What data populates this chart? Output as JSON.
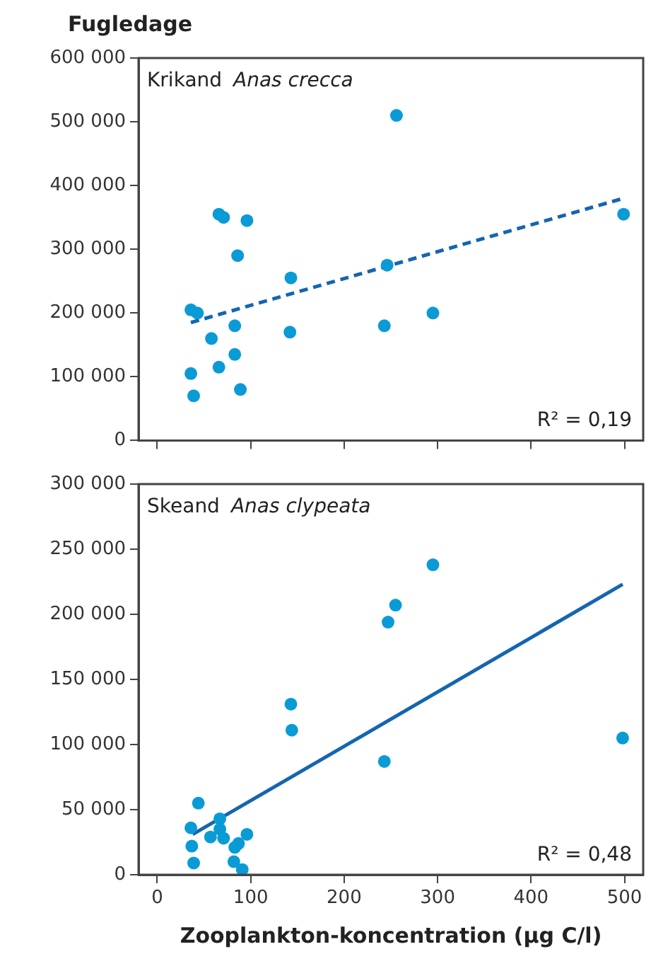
{
  "chart_data": [
    {
      "type": "scatter",
      "ylabel": "Fugledage",
      "title": "Krikand",
      "subtitle": "Anas crecca",
      "annotations": [
        "R² = 0,19"
      ],
      "xlim": [
        -20,
        520
      ],
      "xticks": [
        0,
        100,
        200,
        300,
        400,
        500
      ],
      "ylim": [
        0,
        600000
      ],
      "yticks": [
        {
          "value": 0,
          "label": "0"
        },
        {
          "value": 100000,
          "label": "100 000"
        },
        {
          "value": 200000,
          "label": "200 000"
        },
        {
          "value": 300000,
          "label": "300 000"
        },
        {
          "value": 400000,
          "label": "400 000"
        },
        {
          "value": 500000,
          "label": "500 000"
        },
        {
          "value": 600000,
          "label": "600 000"
        }
      ],
      "tick_labels": "y",
      "grid": false,
      "legend": false,
      "series": [
        {
          "type": "scatter",
          "marker": "circle",
          "color": "#0a9bd6",
          "x": [
            256,
            66,
            71,
            96,
            86,
            143,
            246,
            36,
            43,
            83,
            58,
            142,
            243,
            295,
            83,
            66,
            36,
            39,
            89,
            499
          ],
          "values": [
            510000,
            355000,
            350000,
            345000,
            290000,
            255000,
            275000,
            205000,
            200000,
            180000,
            160000,
            170000,
            180000,
            200000,
            135000,
            115000,
            105000,
            70000,
            80000,
            355000
          ]
        },
        {
          "type": "line",
          "marker": "none",
          "line_style": "dashed",
          "color": "#1565b0",
          "x": [
            36,
            499
          ],
          "values": [
            185000,
            380000
          ]
        }
      ]
    },
    {
      "type": "scatter",
      "xlabel": "Zooplankton-koncentration (µg C/l)",
      "title": "Skeand",
      "subtitle": "Anas clypeata",
      "annotations": [
        "R² = 0,48"
      ],
      "xlim": [
        -20,
        520
      ],
      "xticks": [
        0,
        100,
        200,
        300,
        400,
        500
      ],
      "ylim": [
        0,
        300000
      ],
      "yticks": [
        {
          "value": 0,
          "label": "0"
        },
        {
          "value": 50000,
          "label": "50 000"
        },
        {
          "value": 100000,
          "label": "100 000"
        },
        {
          "value": 150000,
          "label": "150 000"
        },
        {
          "value": 200000,
          "label": "200 000"
        },
        {
          "value": 250000,
          "label": "250 000"
        },
        {
          "value": 300000,
          "label": "300 000"
        }
      ],
      "grid": false,
      "legend": false,
      "series": [
        {
          "type": "scatter",
          "marker": "circle",
          "color": "#0a9bd6",
          "x": [
            295,
            255,
            247,
            143,
            144,
            243,
            44,
            67,
            36,
            67,
            57,
            71,
            96,
            87,
            83,
            37,
            39,
            82,
            91,
            498
          ],
          "values": [
            238000,
            207000,
            194000,
            131000,
            111000,
            87000,
            55000,
            43000,
            36000,
            35000,
            29000,
            28000,
            31000,
            24000,
            21000,
            22000,
            9000,
            10000,
            4000,
            105000
          ]
        },
        {
          "type": "line",
          "marker": "none",
          "line_style": "solid",
          "color": "#1565b0",
          "x": [
            38,
            498
          ],
          "values": [
            31000,
            223000
          ]
        }
      ]
    }
  ]
}
